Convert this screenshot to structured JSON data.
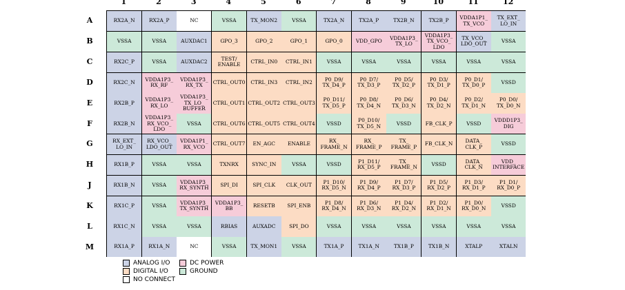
{
  "colors": {
    "analog": "#ccd3e6",
    "digital": "#fcdcc4",
    "power": "#f6ccd9",
    "ground": "#cce9d9",
    "nc": "#ffffff"
  },
  "columns": [
    "1",
    "2",
    "3",
    "4",
    "5",
    "6",
    "7",
    "8",
    "9",
    "10",
    "11",
    "12"
  ],
  "rows": [
    {
      "label": "A",
      "cells": [
        {
          "text": "RX2A_N",
          "type": "analog"
        },
        {
          "text": "RX2A_P",
          "type": "analog"
        },
        {
          "text": "NC",
          "type": "nc"
        },
        {
          "text": "VSSA",
          "type": "ground"
        },
        {
          "text": "TX_MON2",
          "type": "analog"
        },
        {
          "text": "VSSA",
          "type": "ground"
        },
        {
          "text": "TX2A_N",
          "type": "analog"
        },
        {
          "text": "TX2A_P",
          "type": "analog"
        },
        {
          "text": "TX2B_N",
          "type": "analog"
        },
        {
          "text": "TX2B_P",
          "type": "analog"
        },
        {
          "text": "VDDA1P1_\nTX_VCO",
          "type": "power"
        },
        {
          "text": "TX_EXT_\nLO_IN",
          "type": "analog"
        }
      ]
    },
    {
      "label": "B",
      "cells": [
        {
          "text": "VSSA",
          "type": "ground"
        },
        {
          "text": "VSSA",
          "type": "ground"
        },
        {
          "text": "AUXDAC1",
          "type": "analog"
        },
        {
          "text": "GPO_3",
          "type": "digital"
        },
        {
          "text": "GPO_2",
          "type": "digital"
        },
        {
          "text": "GPO_1",
          "type": "digital"
        },
        {
          "text": "GPO_0",
          "type": "digital"
        },
        {
          "text": "VDD_GPO",
          "type": "power"
        },
        {
          "text": "VDDA1P3_\nTX_LO",
          "type": "power"
        },
        {
          "text": "VDDA1P3_\nTX_VCO_\nLDO",
          "type": "power"
        },
        {
          "text": "TX_VCO_\nLDO_OUT",
          "type": "analog"
        },
        {
          "text": "VSSA",
          "type": "ground"
        }
      ]
    },
    {
      "label": "C",
      "cells": [
        {
          "text": "RX2C_P",
          "type": "analog"
        },
        {
          "text": "VSSA",
          "type": "ground"
        },
        {
          "text": "AUXDAC2",
          "type": "analog"
        },
        {
          "text": "TEST/\nENABLE",
          "type": "digital"
        },
        {
          "text": "CTRL_IN0",
          "type": "digital"
        },
        {
          "text": "CTRL_IN1",
          "type": "digital"
        },
        {
          "text": "VSSA",
          "type": "ground"
        },
        {
          "text": "VSSA",
          "type": "ground"
        },
        {
          "text": "VSSA",
          "type": "ground"
        },
        {
          "text": "VSSA",
          "type": "ground"
        },
        {
          "text": "VSSA",
          "type": "ground"
        },
        {
          "text": "VSSA",
          "type": "ground"
        }
      ]
    },
    {
      "label": "D",
      "cells": [
        {
          "text": "RX2C_N",
          "type": "analog"
        },
        {
          "text": "VDDA1P3_\nRX_RF",
          "type": "power"
        },
        {
          "text": "VDDA1P3_\nRX_TX",
          "type": "power"
        },
        {
          "text": "CTRL_OUT0",
          "type": "digital"
        },
        {
          "text": "CTRL_IN3",
          "type": "digital"
        },
        {
          "text": "CTRL_IN2",
          "type": "digital"
        },
        {
          "text": "P0_D9/\nTX_D4_P",
          "type": "digital"
        },
        {
          "text": "P0_D7/\nTX_D3_P",
          "type": "digital"
        },
        {
          "text": "P0_D5/\nTX_D2_P",
          "type": "digital"
        },
        {
          "text": "P0_D3/\nTX_D1_P",
          "type": "digital"
        },
        {
          "text": "P0_D1/\nTX_D0_P",
          "type": "digital"
        },
        {
          "text": "VSSD",
          "type": "ground"
        }
      ]
    },
    {
      "label": "E",
      "cells": [
        {
          "text": "RX2B_P",
          "type": "analog"
        },
        {
          "text": "VDDA1P3_\nRX_LO",
          "type": "power"
        },
        {
          "text": "VDDA1P3_\nTX_LO_\nBUFFER",
          "type": "power"
        },
        {
          "text": "CTRL_OUT1",
          "type": "digital"
        },
        {
          "text": "CTRL_OUT2",
          "type": "digital"
        },
        {
          "text": "CTRL_OUT3",
          "type": "digital"
        },
        {
          "text": "P0_D11/\nTX_D5_P",
          "type": "digital"
        },
        {
          "text": "P0_D8/\nTX_D4_N",
          "type": "digital"
        },
        {
          "text": "P0_D6/\nTX_D3_N",
          "type": "digital"
        },
        {
          "text": "P0_D4/\nTX_D2_N",
          "type": "digital"
        },
        {
          "text": "P0_D2/\nTX_D1_N",
          "type": "digital"
        },
        {
          "text": "P0_D0/\nTX_D0_N",
          "type": "digital"
        }
      ]
    },
    {
      "label": "F",
      "cells": [
        {
          "text": "RX2B_N",
          "type": "analog"
        },
        {
          "text": "VDDA1P3_\nRX_VCO_\nLDO",
          "type": "power"
        },
        {
          "text": "VSSA",
          "type": "ground"
        },
        {
          "text": "CTRL_OUT6",
          "type": "digital"
        },
        {
          "text": "CTRL_OUT5",
          "type": "digital"
        },
        {
          "text": "CTRL_OUT4",
          "type": "digital"
        },
        {
          "text": "VSSD",
          "type": "ground"
        },
        {
          "text": "P0_D10/\nTX_D5_N",
          "type": "digital"
        },
        {
          "text": "VSSD",
          "type": "ground"
        },
        {
          "text": "FB_CLK_P",
          "type": "digital"
        },
        {
          "text": "VSSD",
          "type": "ground"
        },
        {
          "text": "VDDD1P3_\nDIG",
          "type": "power"
        }
      ]
    },
    {
      "label": "G",
      "cells": [
        {
          "text": "RX_EXT_\nLO_IN",
          "type": "analog"
        },
        {
          "text": "RX_VCO_\nLDO_OUT",
          "type": "analog"
        },
        {
          "text": "VDDA1P1_\nRX_VCO",
          "type": "power"
        },
        {
          "text": "CTRL_OUT7",
          "type": "digital"
        },
        {
          "text": "EN_AGC",
          "type": "digital"
        },
        {
          "text": "ENABLE",
          "type": "digital"
        },
        {
          "text": "RX_\nFRAME_N",
          "type": "digital"
        },
        {
          "text": "RX_\nFRAME_P",
          "type": "digital"
        },
        {
          "text": "TX_\nFRAME_P",
          "type": "digital"
        },
        {
          "text": "FB_CLK_N",
          "type": "digital"
        },
        {
          "text": "DATA_\nCLK_P",
          "type": "digital"
        },
        {
          "text": "VSSD",
          "type": "ground"
        }
      ]
    },
    {
      "label": "H",
      "cells": [
        {
          "text": "RX1B_P",
          "type": "analog"
        },
        {
          "text": "VSSA",
          "type": "ground"
        },
        {
          "text": "VSSA",
          "type": "ground"
        },
        {
          "text": "TXNRX",
          "type": "digital"
        },
        {
          "text": "SYNC_IN",
          "type": "digital"
        },
        {
          "text": "VSSA",
          "type": "ground"
        },
        {
          "text": "VSSD",
          "type": "ground"
        },
        {
          "text": "P1_D11/\nRX_D5_P",
          "type": "digital"
        },
        {
          "text": "TX_\nFRAME_N",
          "type": "digital"
        },
        {
          "text": "VSSD",
          "type": "ground"
        },
        {
          "text": "DATA_\nCLK_N",
          "type": "digital"
        },
        {
          "text": "VDD_\nINTERFACE",
          "type": "power"
        }
      ]
    },
    {
      "label": "J",
      "cells": [
        {
          "text": "RX1B_N",
          "type": "analog"
        },
        {
          "text": "VSSA",
          "type": "ground"
        },
        {
          "text": "VDDA1P3_\nRX_SYNTH",
          "type": "power"
        },
        {
          "text": "SPI_DI",
          "type": "digital"
        },
        {
          "text": "SPI_CLK",
          "type": "digital"
        },
        {
          "text": "CLK_OUT",
          "type": "digital"
        },
        {
          "text": "P1_D10/\nRX_D5_N",
          "type": "digital"
        },
        {
          "text": "P1_D9/\nRX_D4_P",
          "type": "digital"
        },
        {
          "text": "P1_D7/\nRX_D3_P",
          "type": "digital"
        },
        {
          "text": "P1_D5/\nRX_D2_P",
          "type": "digital"
        },
        {
          "text": "P1_D3/\nRX_D1_P",
          "type": "digital"
        },
        {
          "text": "P1_D1/\nRX_D0_P",
          "type": "digital"
        }
      ]
    },
    {
      "label": "K",
      "cells": [
        {
          "text": "RX1C_P",
          "type": "analog"
        },
        {
          "text": "VSSA",
          "type": "ground"
        },
        {
          "text": "VDDA1P3_\nTX_SYNTH",
          "type": "power"
        },
        {
          "text": "VDDA1P3_\nBB",
          "type": "power"
        },
        {
          "text": "RESETB",
          "type": "digital"
        },
        {
          "text": "SPI_ENB",
          "type": "digital"
        },
        {
          "text": "P1_D8/\nRX_D4_N",
          "type": "digital"
        },
        {
          "text": "P1_D6/\nRX_D3_N",
          "type": "digital"
        },
        {
          "text": "P1_D4/\nRX_D2_N",
          "type": "digital"
        },
        {
          "text": "P1_D2/\nRX_D1_N",
          "type": "digital"
        },
        {
          "text": "P1_D0/\nRX_D0_N",
          "type": "digital"
        },
        {
          "text": "VSSD",
          "type": "ground"
        }
      ]
    },
    {
      "label": "L",
      "cells": [
        {
          "text": "RX1C_N",
          "type": "analog"
        },
        {
          "text": "VSSA",
          "type": "ground"
        },
        {
          "text": "VSSA",
          "type": "ground"
        },
        {
          "text": "RBIAS",
          "type": "analog"
        },
        {
          "text": "AUXADC",
          "type": "analog"
        },
        {
          "text": "SPI_DO",
          "type": "digital"
        },
        {
          "text": "VSSA",
          "type": "ground"
        },
        {
          "text": "VSSA",
          "type": "ground"
        },
        {
          "text": "VSSA",
          "type": "ground"
        },
        {
          "text": "VSSA",
          "type": "ground"
        },
        {
          "text": "VSSA",
          "type": "ground"
        },
        {
          "text": "VSSA",
          "type": "ground"
        }
      ]
    },
    {
      "label": "M",
      "cells": [
        {
          "text": "RX1A_P",
          "type": "analog"
        },
        {
          "text": "RX1A_N",
          "type": "analog"
        },
        {
          "text": "NC",
          "type": "nc"
        },
        {
          "text": "VSSA",
          "type": "ground"
        },
        {
          "text": "TX_MON1",
          "type": "analog"
        },
        {
          "text": "VSSA",
          "type": "ground"
        },
        {
          "text": "TX1A_P",
          "type": "analog"
        },
        {
          "text": "TX1A_N",
          "type": "analog"
        },
        {
          "text": "TX1B_P",
          "type": "analog"
        },
        {
          "text": "TX1B_N",
          "type": "analog"
        },
        {
          "text": "XTALP",
          "type": "analog"
        },
        {
          "text": "XTALN",
          "type": "analog"
        }
      ]
    }
  ],
  "legend": [
    {
      "label": "ANALOG I/O",
      "type": "analog"
    },
    {
      "label": "DC POWER",
      "type": "power"
    },
    {
      "label": "DIGITAL I/O",
      "type": "digital"
    },
    {
      "label": "GROUND",
      "type": "ground"
    },
    {
      "label": "NO CONNECT",
      "type": "nc"
    }
  ]
}
